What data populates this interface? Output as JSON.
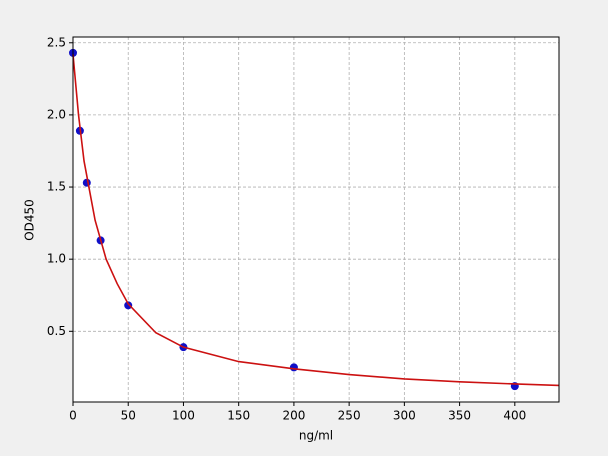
{
  "chart_data": {
    "type": "scatter",
    "xlabel": "ng/ml",
    "ylabel": "OD450",
    "xlim": [
      0,
      440
    ],
    "ylim": [
      0.01,
      2.54
    ],
    "xticks": [
      0,
      50,
      100,
      150,
      200,
      250,
      300,
      350,
      400
    ],
    "yticks": [
      0.5,
      {
        "value": 1,
        "label": "1.0"
      },
      1.5,
      {
        "value": 2,
        "label": "2.0"
      },
      2.5
    ],
    "grid": true,
    "series": [
      {
        "type": "scatter",
        "color": "#1010c8",
        "x": [
          0,
          6.25,
          12.5,
          25,
          50,
          100,
          200,
          400
        ],
        "values": [
          2.43,
          1.89,
          1.53,
          1.13,
          0.68,
          0.39,
          0.25,
          0.12
        ]
      },
      {
        "type": "line",
        "color": "#cc1111",
        "x": [
          0,
          5,
          10,
          20,
          30,
          40,
          50,
          75,
          100,
          150,
          200,
          250,
          300,
          350,
          400,
          440
        ],
        "values": [
          2.42,
          2.0,
          1.68,
          1.27,
          1.0,
          0.83,
          0.69,
          0.49,
          0.39,
          0.29,
          0.24,
          0.2,
          0.17,
          0.15,
          0.135,
          0.125
        ]
      }
    ]
  }
}
